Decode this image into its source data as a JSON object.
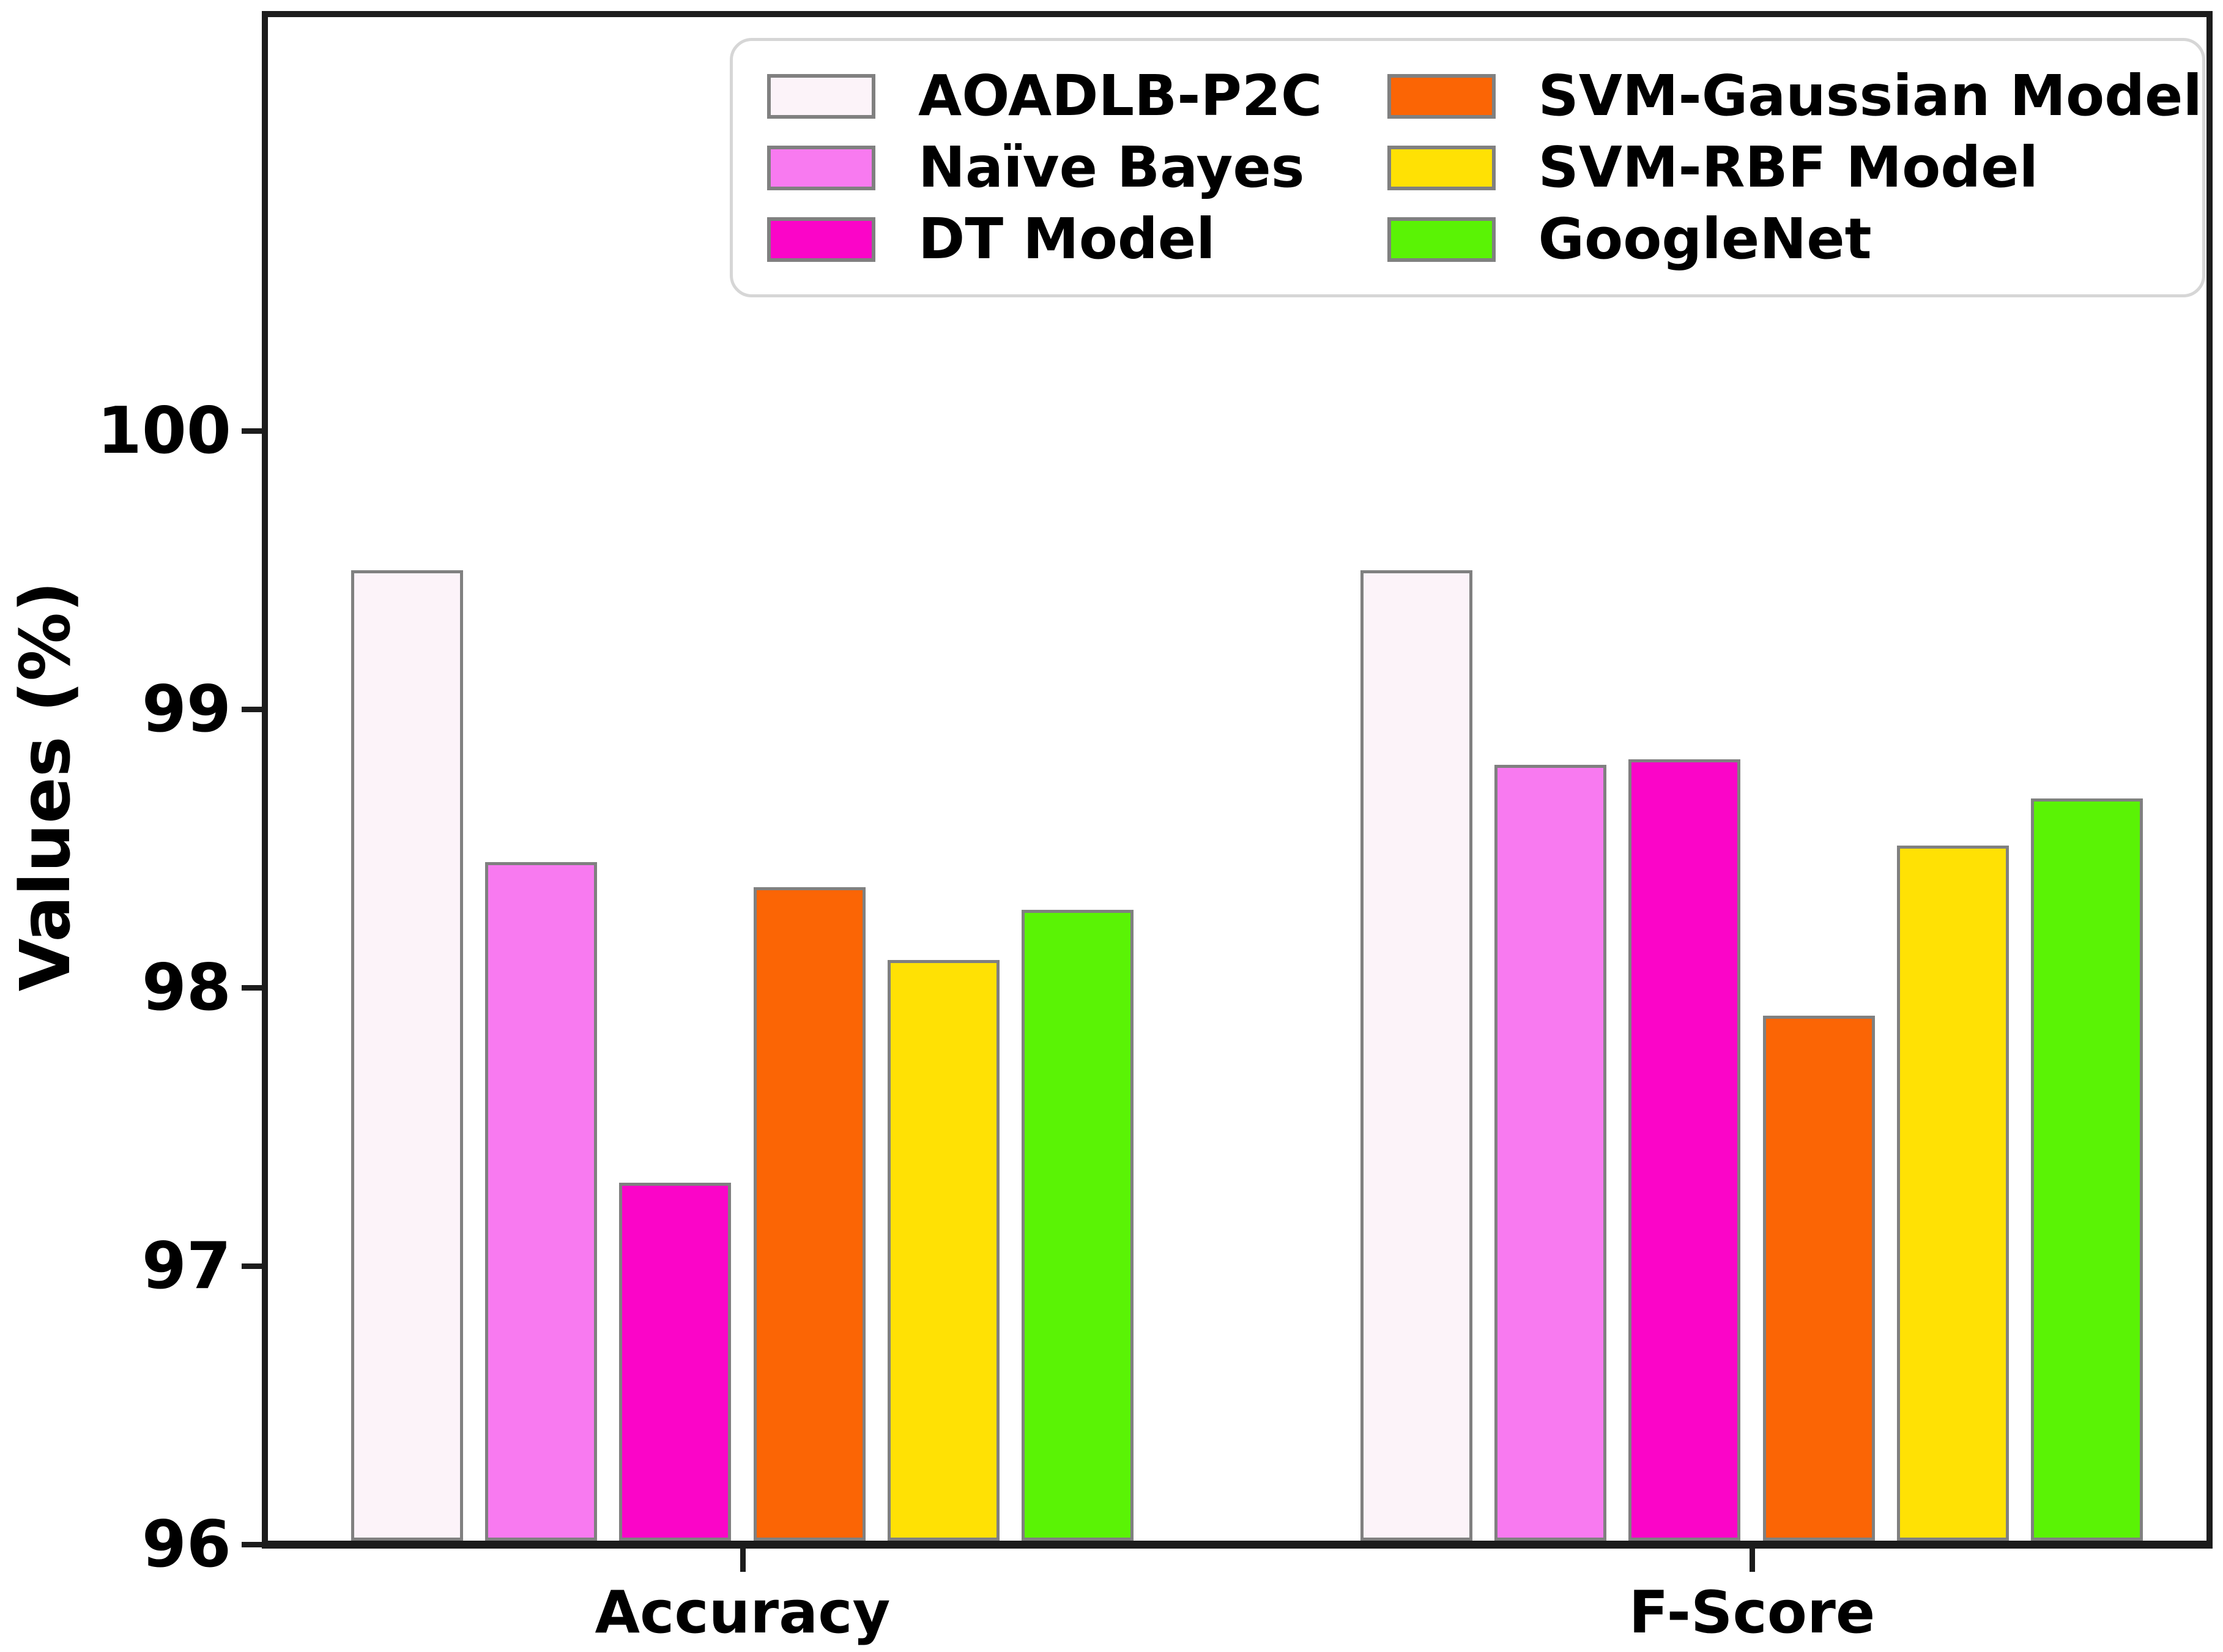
{
  "chart_data": {
    "type": "bar",
    "title": "",
    "ylabel": "Values (%)",
    "categories": [
      "Accuracy",
      "F-Score"
    ],
    "series": [
      {
        "name": "AOADLB-P2C",
        "color": "#fcf3f9",
        "edge": "#808080",
        "values": [
          99.5,
          99.5
        ]
      },
      {
        "name": "Naïve Bayes",
        "color": "#f87af0",
        "edge": "#808080",
        "values": [
          98.45,
          98.8
        ]
      },
      {
        "name": "DT Model",
        "color": "#fb05c8",
        "edge": "#808080",
        "values": [
          97.3,
          98.82
        ]
      },
      {
        "name": "SVM-Gaussian Model",
        "color": "#fb6505",
        "edge": "#808080",
        "values": [
          98.36,
          97.9
        ]
      },
      {
        "name": "SVM-RBF Model",
        "color": "#ffe104",
        "edge": "#808080",
        "values": [
          98.1,
          98.51
        ]
      },
      {
        "name": "GoogleNet",
        "color": "#5af305",
        "edge": "#808080",
        "values": [
          98.28,
          98.68
        ]
      }
    ],
    "yticks": [
      "96",
      "97",
      "98",
      "99",
      "100"
    ],
    "ylim": [
      96,
      101.45
    ],
    "grid": false,
    "legend_position": "upper right",
    "legend_columns": 2,
    "axis_color": "#1c1c1c",
    "text_color": "#000000"
  }
}
